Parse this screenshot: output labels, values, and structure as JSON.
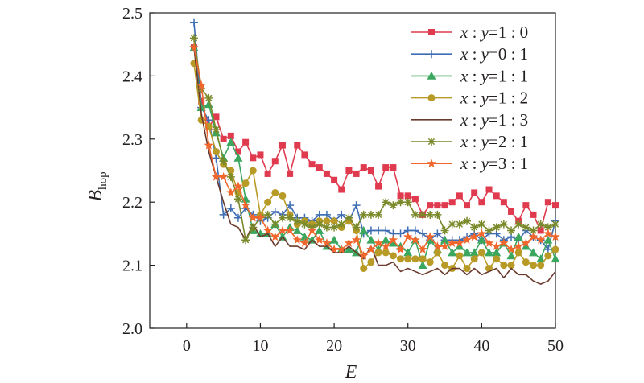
{
  "chart_data": {
    "type": "line",
    "xlabel": "E",
    "ylabel": {
      "main": "B",
      "sub": "hop"
    },
    "xlim": [
      -5,
      50
    ],
    "ylim": [
      2.0,
      2.5
    ],
    "xticks": [
      0,
      10,
      20,
      30,
      40,
      50
    ],
    "yticks": [
      2.0,
      2.1,
      2.2,
      2.3,
      2.4,
      2.5
    ],
    "xtick_labels": [
      "0",
      "10",
      "20",
      "30",
      "40",
      "50"
    ],
    "ytick_labels": [
      "2.0",
      "2.1",
      "2.2",
      "2.3",
      "2.4",
      "2.5"
    ],
    "grid": false,
    "legend_position": "top-right",
    "x": [
      1,
      2,
      3,
      4,
      5,
      6,
      7,
      8,
      9,
      10,
      11,
      12,
      13,
      14,
      15,
      16,
      17,
      18,
      19,
      20,
      21,
      22,
      23,
      24,
      25,
      26,
      27,
      28,
      29,
      30,
      31,
      32,
      33,
      34,
      35,
      36,
      37,
      38,
      39,
      40,
      41,
      42,
      43,
      44,
      45,
      46,
      47,
      48,
      49,
      50
    ],
    "series": [
      {
        "name": {
          "a": "x",
          "b": "y",
          "r": "=1 : 0"
        },
        "color": "#e03a4e",
        "marker": "square",
        "values": [
          2.445,
          2.36,
          2.32,
          2.335,
          2.3,
          2.305,
          2.28,
          2.295,
          2.27,
          2.275,
          2.245,
          2.265,
          2.29,
          2.245,
          2.29,
          2.275,
          2.26,
          2.255,
          2.245,
          2.235,
          2.22,
          2.25,
          2.245,
          2.255,
          2.25,
          2.225,
          2.255,
          2.255,
          2.21,
          2.21,
          2.205,
          2.18,
          2.195,
          2.195,
          2.195,
          2.2,
          2.21,
          2.195,
          2.215,
          2.2,
          2.22,
          2.21,
          2.2,
          2.185,
          2.17,
          2.195,
          2.18,
          2.155,
          2.2,
          2.195
        ]
      },
      {
        "name": {
          "a": "x",
          "b": "y",
          "r": "=0 : 1"
        },
        "color": "#3f6db3",
        "marker": "plus",
        "values": [
          2.485,
          2.35,
          2.33,
          2.27,
          2.18,
          2.19,
          2.175,
          2.19,
          2.18,
          2.17,
          2.175,
          2.185,
          2.18,
          2.195,
          2.175,
          2.175,
          2.17,
          2.18,
          2.18,
          2.17,
          2.18,
          2.17,
          2.195,
          2.15,
          2.155,
          2.155,
          2.155,
          2.15,
          2.15,
          2.155,
          2.155,
          2.15,
          2.14,
          2.15,
          2.14,
          2.14,
          2.14,
          2.145,
          2.15,
          2.14,
          2.15,
          2.15,
          2.14,
          2.145,
          2.14,
          2.155,
          2.145,
          2.14,
          2.125,
          2.17
        ]
      },
      {
        "name": {
          "a": "x",
          "b": "y",
          "r": "=1 : 1"
        },
        "color": "#3aa65e",
        "marker": "triangle",
        "values": [
          2.445,
          2.35,
          2.355,
          2.31,
          2.27,
          2.295,
          2.27,
          2.205,
          2.155,
          2.15,
          2.15,
          2.165,
          2.145,
          2.16,
          2.155,
          2.145,
          2.14,
          2.155,
          2.13,
          2.14,
          2.125,
          2.125,
          2.12,
          2.155,
          2.14,
          2.125,
          2.14,
          2.135,
          2.13,
          2.12,
          2.14,
          2.1,
          2.14,
          2.125,
          2.14,
          2.12,
          2.13,
          2.12,
          2.12,
          2.14,
          2.12,
          2.12,
          2.135,
          2.115,
          2.145,
          2.13,
          2.12,
          2.11,
          2.14,
          2.11
        ]
      },
      {
        "name": {
          "a": "x",
          "b": "y",
          "r": "=1 : 2"
        },
        "color": "#b89a27",
        "marker": "circle",
        "values": [
          2.42,
          2.33,
          2.32,
          2.28,
          2.26,
          2.25,
          2.215,
          2.23,
          2.25,
          2.18,
          2.2,
          2.215,
          2.21,
          2.18,
          2.165,
          2.17,
          2.165,
          2.17,
          2.17,
          2.17,
          2.16,
          2.17,
          2.155,
          2.095,
          2.105,
          2.12,
          2.12,
          2.115,
          2.11,
          2.11,
          2.11,
          2.11,
          2.105,
          2.12,
          2.1,
          2.095,
          2.115,
          2.095,
          2.11,
          2.12,
          2.095,
          2.11,
          2.1,
          2.1,
          2.12,
          2.105,
          2.1,
          2.1,
          2.115,
          2.125
        ]
      },
      {
        "name": {
          "a": "x",
          "b": "y",
          "r": "=1 : 3"
        },
        "color": "#6a3a2e",
        "marker": "none",
        "values": [
          2.445,
          2.34,
          2.28,
          2.24,
          2.2,
          2.165,
          2.16,
          2.14,
          2.165,
          2.145,
          2.15,
          2.13,
          2.145,
          2.13,
          2.13,
          2.125,
          2.14,
          2.13,
          2.13,
          2.12,
          2.12,
          2.13,
          2.12,
          2.11,
          2.13,
          2.1,
          2.1,
          2.105,
          2.09,
          2.095,
          2.09,
          2.085,
          2.09,
          2.095,
          2.085,
          2.095,
          2.095,
          2.085,
          2.095,
          2.085,
          2.09,
          2.095,
          2.08,
          2.095,
          2.085,
          2.085,
          2.075,
          2.07,
          2.075,
          2.09
        ]
      },
      {
        "name": {
          "a": "x",
          "b": "y",
          "r": "=2 : 1"
        },
        "color": "#7a8a2a",
        "marker": "asterisk",
        "values": [
          2.46,
          2.38,
          2.365,
          2.315,
          2.265,
          2.24,
          2.205,
          2.14,
          2.16,
          2.175,
          2.18,
          2.165,
          2.175,
          2.175,
          2.17,
          2.165,
          2.16,
          2.165,
          2.16,
          2.16,
          2.165,
          2.175,
          2.16,
          2.18,
          2.18,
          2.18,
          2.2,
          2.195,
          2.2,
          2.2,
          2.18,
          2.18,
          2.18,
          2.18,
          2.155,
          2.165,
          2.165,
          2.17,
          2.16,
          2.165,
          2.155,
          2.16,
          2.165,
          2.155,
          2.165,
          2.16,
          2.155,
          2.165,
          2.16,
          2.165
        ]
      },
      {
        "name": {
          "a": "x",
          "b": "y",
          "r": "=3 : 1"
        },
        "color": "#f0662c",
        "marker": "star",
        "values": [
          2.445,
          2.385,
          2.29,
          2.24,
          2.24,
          2.215,
          2.225,
          2.195,
          2.175,
          2.175,
          2.155,
          2.145,
          2.155,
          2.155,
          2.14,
          2.135,
          2.155,
          2.14,
          2.135,
          2.125,
          2.125,
          2.135,
          2.14,
          2.115,
          2.125,
          2.135,
          2.13,
          2.14,
          2.125,
          2.145,
          2.14,
          2.125,
          2.145,
          2.13,
          2.13,
          2.135,
          2.135,
          2.14,
          2.145,
          2.15,
          2.135,
          2.13,
          2.135,
          2.125,
          2.13,
          2.135,
          2.145,
          2.14,
          2.15,
          2.145
        ]
      }
    ]
  }
}
